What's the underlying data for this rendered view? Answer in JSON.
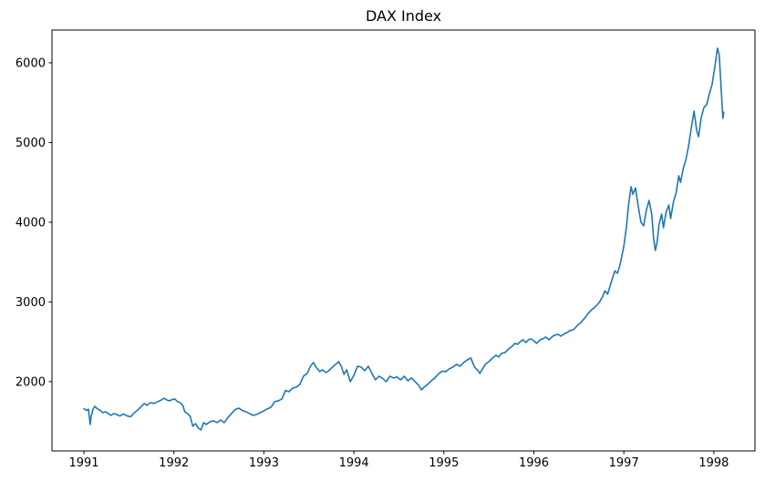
{
  "title": "DAX Index",
  "chart_data": {
    "type": "line",
    "title": "DAX Index",
    "series_name": "DAX Index",
    "line_color": "#1f77b4",
    "background_color": "#ffffff",
    "axis_color": "#000000",
    "xlabel": "",
    "ylabel": "",
    "grid": false,
    "legend": "none",
    "xlim": [
      1990.645,
      1998.457
    ],
    "ylim": [
      1131,
      6411
    ],
    "xticks": [
      1991,
      1992,
      1993,
      1994,
      1995,
      1996,
      1997,
      1998
    ],
    "yticks": [
      2000,
      3000,
      4000,
      5000,
      6000
    ],
    "x": [
      1991.0,
      1991.03,
      1991.05,
      1991.06,
      1991.07,
      1991.08,
      1991.1,
      1991.12,
      1991.15,
      1991.18,
      1991.21,
      1991.24,
      1991.27,
      1991.3,
      1991.33,
      1991.36,
      1991.4,
      1991.44,
      1991.48,
      1991.52,
      1991.56,
      1991.6,
      1991.63,
      1991.67,
      1991.7,
      1991.74,
      1991.78,
      1991.82,
      1991.86,
      1991.89,
      1991.92,
      1991.95,
      1991.98,
      1992.01,
      1992.04,
      1992.07,
      1992.1,
      1992.12,
      1992.15,
      1992.18,
      1992.21,
      1992.24,
      1992.27,
      1992.3,
      1992.33,
      1992.36,
      1992.4,
      1992.44,
      1992.48,
      1992.52,
      1992.56,
      1992.6,
      1992.64,
      1992.68,
      1992.72,
      1992.76,
      1992.8,
      1992.84,
      1992.88,
      1992.92,
      1992.96,
      1993.0,
      1993.04,
      1993.08,
      1993.12,
      1993.16,
      1993.2,
      1993.24,
      1993.28,
      1993.32,
      1993.36,
      1993.4,
      1993.44,
      1993.48,
      1993.52,
      1993.55,
      1993.58,
      1993.62,
      1993.65,
      1993.69,
      1993.72,
      1993.76,
      1993.8,
      1993.83,
      1993.86,
      1993.89,
      1993.92,
      1993.96,
      1994.0,
      1994.04,
      1994.08,
      1994.12,
      1994.16,
      1994.2,
      1994.24,
      1994.28,
      1994.32,
      1994.36,
      1994.4,
      1994.44,
      1994.48,
      1994.52,
      1994.56,
      1994.6,
      1994.64,
      1994.68,
      1994.72,
      1994.75,
      1994.78,
      1994.82,
      1994.86,
      1994.9,
      1994.94,
      1994.98,
      1995.02,
      1995.06,
      1995.1,
      1995.14,
      1995.18,
      1995.22,
      1995.26,
      1995.3,
      1995.34,
      1995.38,
      1995.4,
      1995.43,
      1995.46,
      1995.5,
      1995.54,
      1995.58,
      1995.61,
      1995.64,
      1995.68,
      1995.72,
      1995.76,
      1995.79,
      1995.82,
      1995.85,
      1995.88,
      1995.91,
      1995.94,
      1995.97,
      1996.0,
      1996.03,
      1996.07,
      1996.1,
      1996.13,
      1996.17,
      1996.2,
      1996.23,
      1996.27,
      1996.3,
      1996.33,
      1996.37,
      1996.4,
      1996.44,
      1996.48,
      1996.52,
      1996.56,
      1996.6,
      1996.64,
      1996.67,
      1996.7,
      1996.73,
      1996.76,
      1996.79,
      1996.82,
      1996.86,
      1996.9,
      1996.93,
      1996.96,
      1997.0,
      1997.03,
      1997.05,
      1997.08,
      1997.1,
      1997.13,
      1997.16,
      1997.19,
      1997.22,
      1997.25,
      1997.28,
      1997.31,
      1997.33,
      1997.35,
      1997.37,
      1997.39,
      1997.42,
      1997.44,
      1997.47,
      1997.5,
      1997.52,
      1997.55,
      1997.58,
      1997.61,
      1997.63,
      1997.66,
      1997.69,
      1997.72,
      1997.75,
      1997.78,
      1997.81,
      1997.83,
      1997.86,
      1997.89,
      1997.92,
      1997.95,
      1997.98,
      1998.01,
      1998.04,
      1998.06,
      1998.08,
      1998.1,
      1998.11
    ],
    "y": [
      1660,
      1640,
      1655,
      1560,
      1463,
      1560,
      1650,
      1691,
      1660,
      1640,
      1611,
      1623,
      1600,
      1577,
      1600,
      1590,
      1570,
      1595,
      1570,
      1560,
      1610,
      1646,
      1680,
      1726,
      1703,
      1737,
      1726,
      1749,
      1770,
      1794,
      1771,
      1760,
      1775,
      1783,
      1749,
      1737,
      1700,
      1623,
      1600,
      1566,
      1440,
      1474,
      1420,
      1394,
      1486,
      1463,
      1497,
      1509,
      1486,
      1520,
      1486,
      1550,
      1600,
      1650,
      1668,
      1640,
      1623,
      1600,
      1577,
      1590,
      1611,
      1634,
      1660,
      1680,
      1749,
      1760,
      1783,
      1890,
      1874,
      1920,
      1931,
      1966,
      2069,
      2103,
      2200,
      2240,
      2183,
      2126,
      2149,
      2114,
      2137,
      2180,
      2220,
      2251,
      2194,
      2091,
      2149,
      2000,
      2080,
      2194,
      2183,
      2137,
      2194,
      2103,
      2023,
      2069,
      2040,
      2000,
      2069,
      2046,
      2060,
      2023,
      2069,
      2011,
      2046,
      2000,
      1954,
      1897,
      1931,
      1966,
      2011,
      2046,
      2100,
      2130,
      2126,
      2160,
      2183,
      2217,
      2194,
      2240,
      2274,
      2297,
      2183,
      2137,
      2103,
      2160,
      2217,
      2251,
      2297,
      2331,
      2309,
      2354,
      2366,
      2411,
      2446,
      2480,
      2469,
      2503,
      2526,
      2491,
      2526,
      2537,
      2514,
      2480,
      2526,
      2537,
      2560,
      2526,
      2560,
      2583,
      2594,
      2571,
      2594,
      2617,
      2640,
      2651,
      2700,
      2740,
      2790,
      2850,
      2900,
      2926,
      2960,
      3000,
      3060,
      3140,
      3100,
      3250,
      3390,
      3360,
      3480,
      3700,
      3950,
      4200,
      4446,
      4350,
      4430,
      4200,
      4000,
      3954,
      4150,
      4274,
      4100,
      3800,
      3646,
      3750,
      3966,
      4103,
      3931,
      4130,
      4217,
      4046,
      4251,
      4366,
      4583,
      4500,
      4674,
      4789,
      4960,
      5189,
      5394,
      5150,
      5074,
      5314,
      5440,
      5474,
      5611,
      5726,
      5940,
      6183,
      6100,
      5700,
      5303,
      5380
    ]
  }
}
